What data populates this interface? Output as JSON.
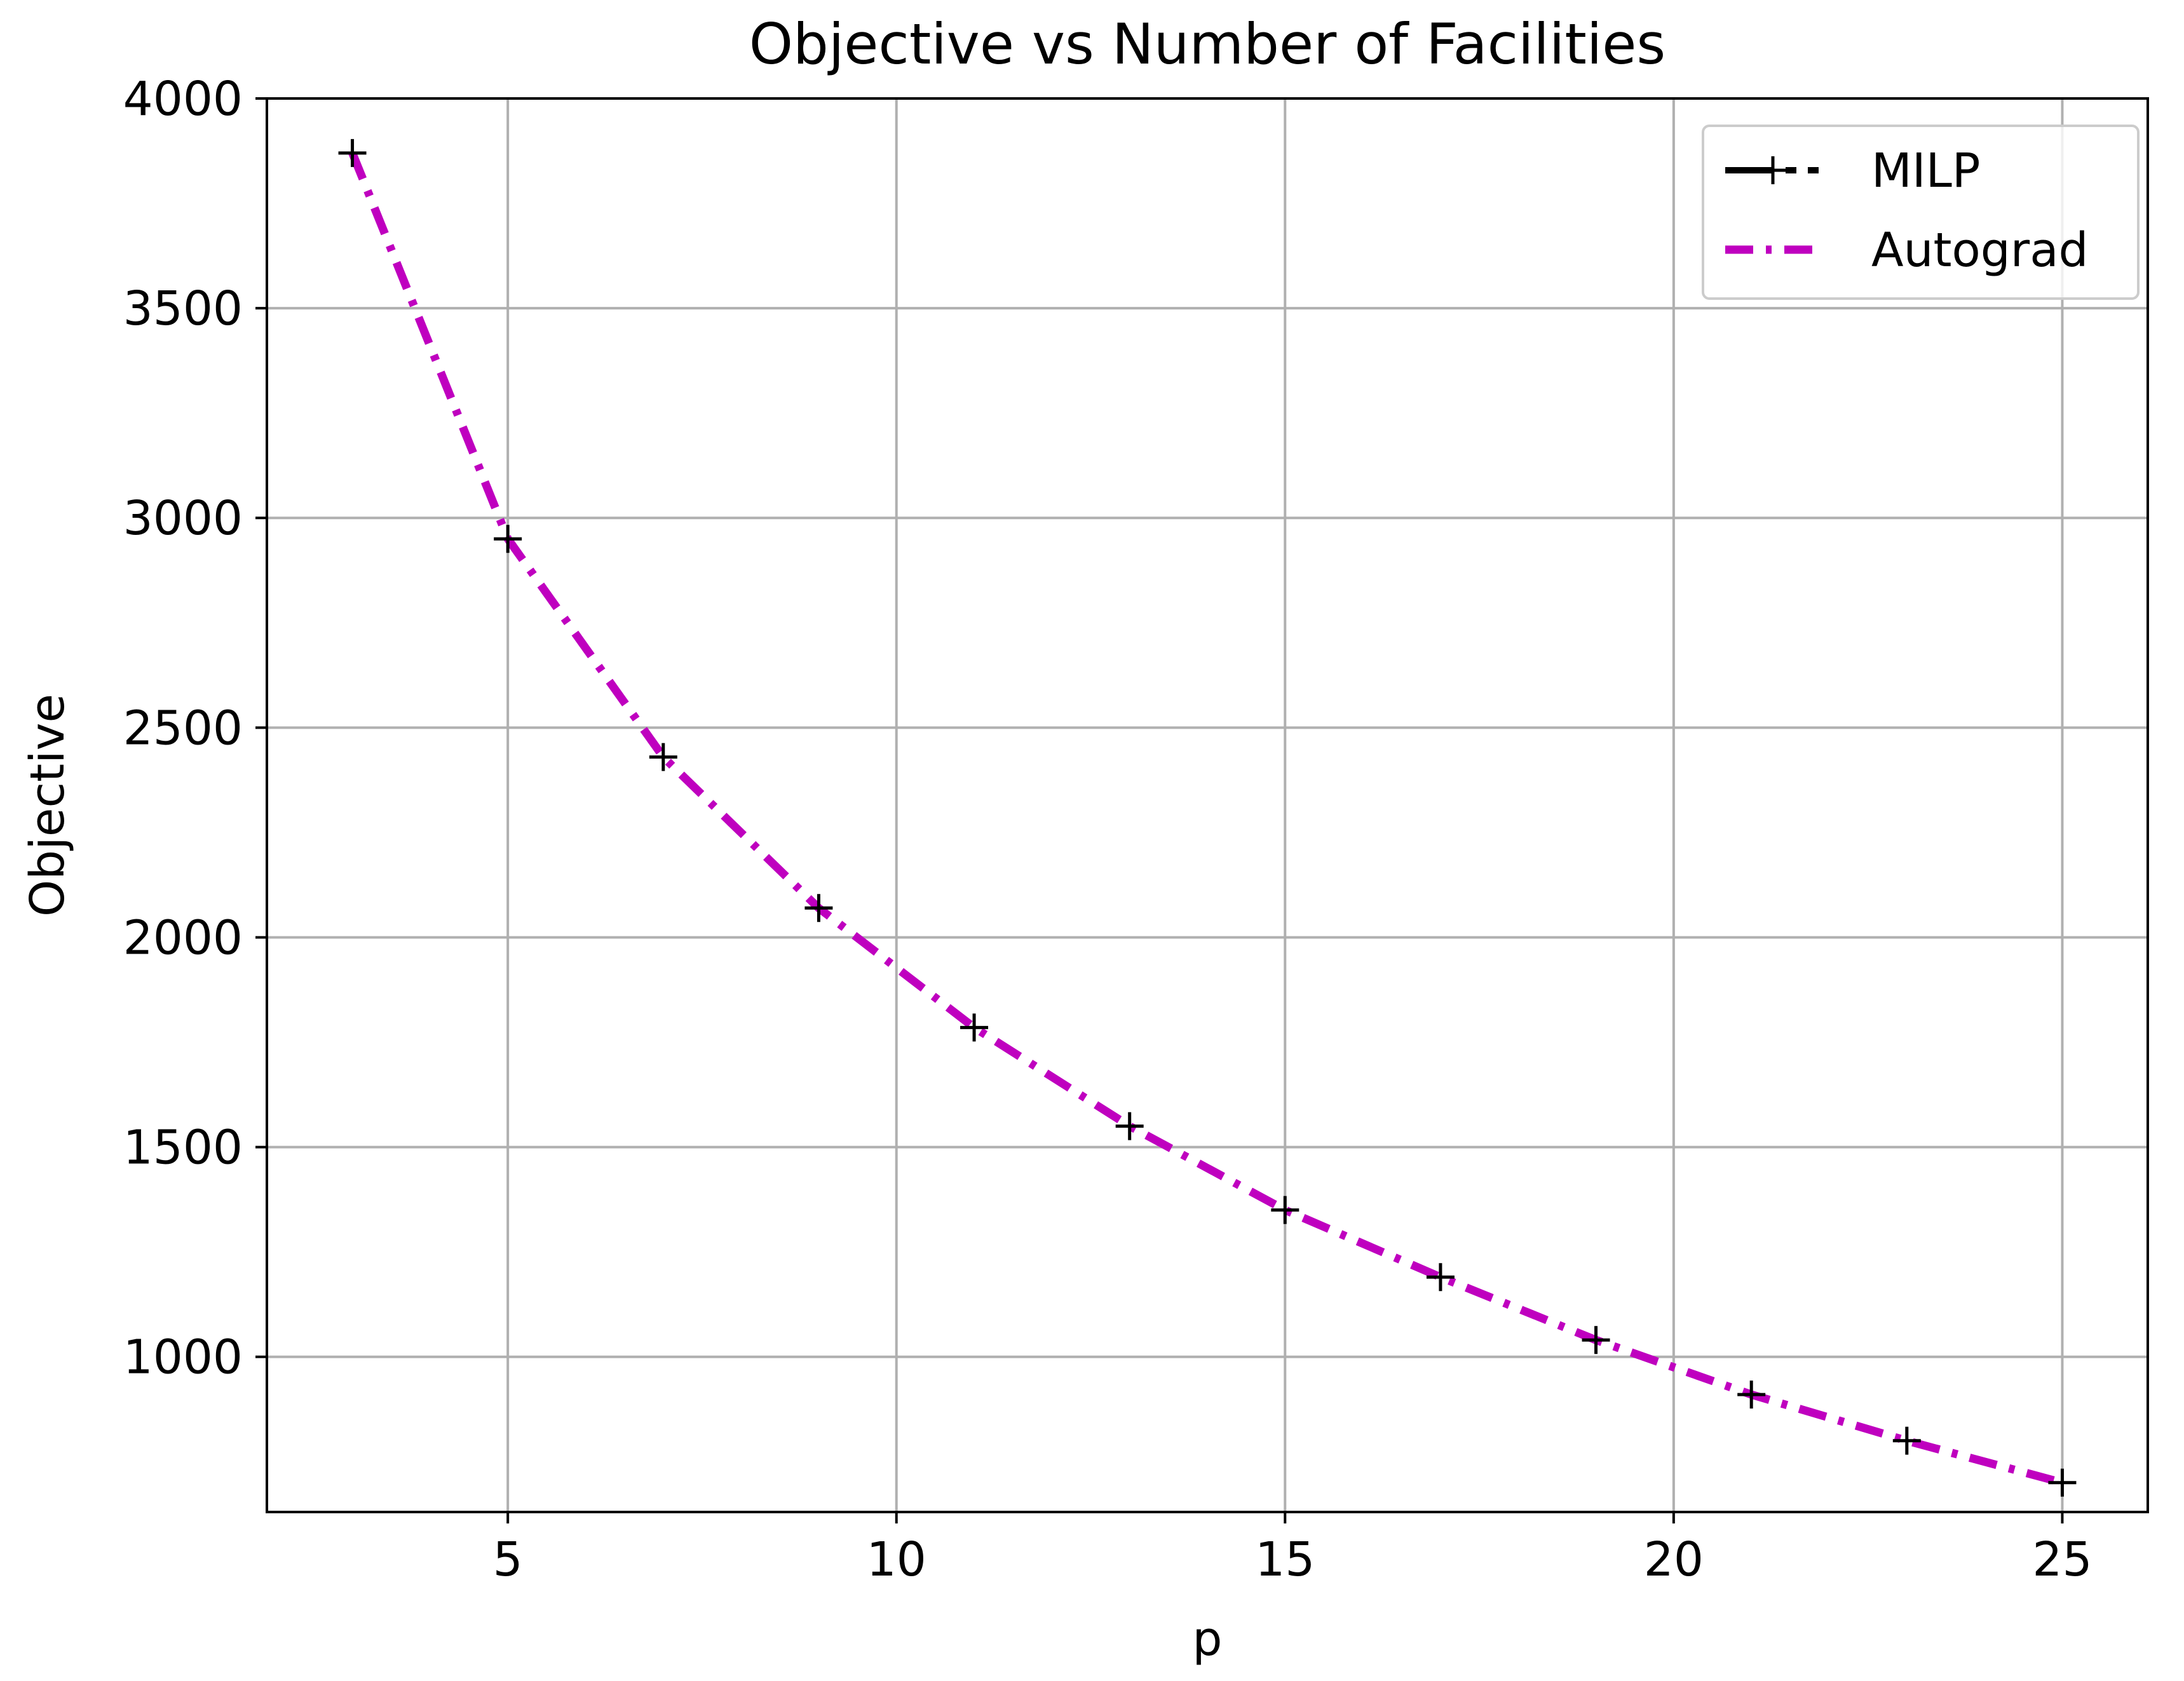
{
  "chart_data": {
    "type": "line",
    "title": "Objective vs Number of Facilities",
    "xlabel": "p",
    "ylabel": "Objective",
    "xlim": [
      1.9,
      26.1
    ],
    "ylim": [
      630,
      4000
    ],
    "xticks": [
      5,
      10,
      15,
      20,
      25
    ],
    "yticks": [
      1000,
      1500,
      2000,
      2500,
      3000,
      3500,
      4000
    ],
    "grid": true,
    "legend_position": "top-right",
    "series": [
      {
        "name": "MILP",
        "marker": "plus",
        "line_style": "dotted",
        "color": "#000000",
        "x": [
          3,
          5,
          7,
          9,
          11,
          13,
          15,
          17,
          19,
          21,
          23,
          25
        ],
        "y": [
          3870,
          2950,
          2430,
          2070,
          1785,
          1550,
          1350,
          1190,
          1040,
          910,
          800,
          700
        ]
      },
      {
        "name": "Autograd",
        "marker": "none",
        "line_style": "dashdot",
        "color": "#bf00bf",
        "x": [
          3,
          5,
          7,
          9,
          11,
          13,
          15,
          17,
          19,
          21,
          23,
          25
        ],
        "y": [
          3870,
          2950,
          2430,
          2070,
          1785,
          1550,
          1350,
          1190,
          1040,
          910,
          800,
          700
        ]
      }
    ]
  }
}
